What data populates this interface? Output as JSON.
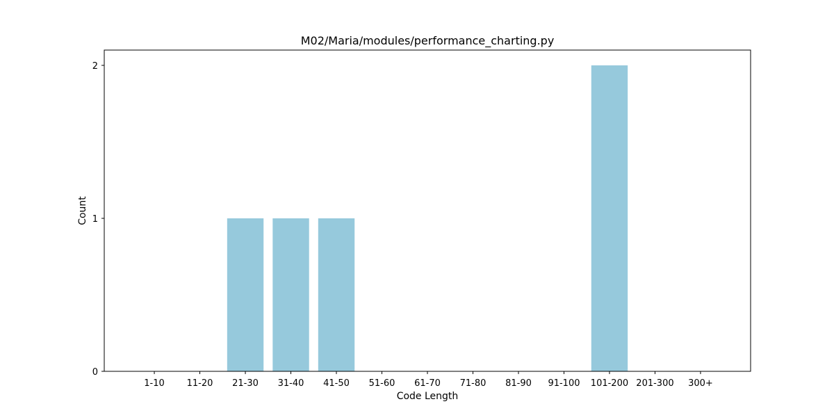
{
  "chart_data": {
    "type": "bar",
    "title": "M02/Maria/modules/performance_charting.py",
    "xlabel": "Code Length",
    "ylabel": "Count",
    "categories": [
      "1-10",
      "11-20",
      "21-30",
      "31-40",
      "41-50",
      "51-60",
      "61-70",
      "71-80",
      "81-90",
      "91-100",
      "101-200",
      "201-300",
      "300+"
    ],
    "values": [
      0,
      0,
      1,
      1,
      1,
      0,
      0,
      0,
      0,
      0,
      2,
      0,
      0
    ],
    "yticks": [
      "0",
      "1",
      "2"
    ],
    "ylim": [
      0,
      2.1
    ],
    "grid": false,
    "legend": "none",
    "bar_color": "#96c9dc"
  }
}
